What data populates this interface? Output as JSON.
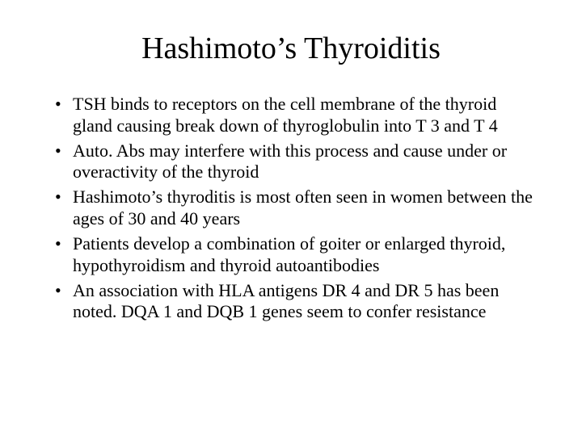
{
  "slide": {
    "title": "Hashimoto’s Thyroiditis",
    "title_fontsize": 38,
    "title_align": "center",
    "body_fontsize": 22,
    "font_family": "Times New Roman",
    "text_color": "#000000",
    "background_color": "#ffffff",
    "bullets": [
      "TSH binds to receptors on the cell membrane of the thyroid gland causing break down of thyroglobulin into T 3 and T 4",
      "Auto. Abs may interfere with this process and cause under or overactivity of the thyroid",
      "Hashimoto’s thyroditis is most often seen in women between the ages of 30 and 40 years",
      "Patients develop a combination of goiter or enlarged thyroid, hypothyroidism and thyroid autoantibodies",
      "An association with HLA antigens DR 4 and DR 5 has been noted. DQA 1 and DQB 1 genes seem to confer resistance"
    ]
  }
}
